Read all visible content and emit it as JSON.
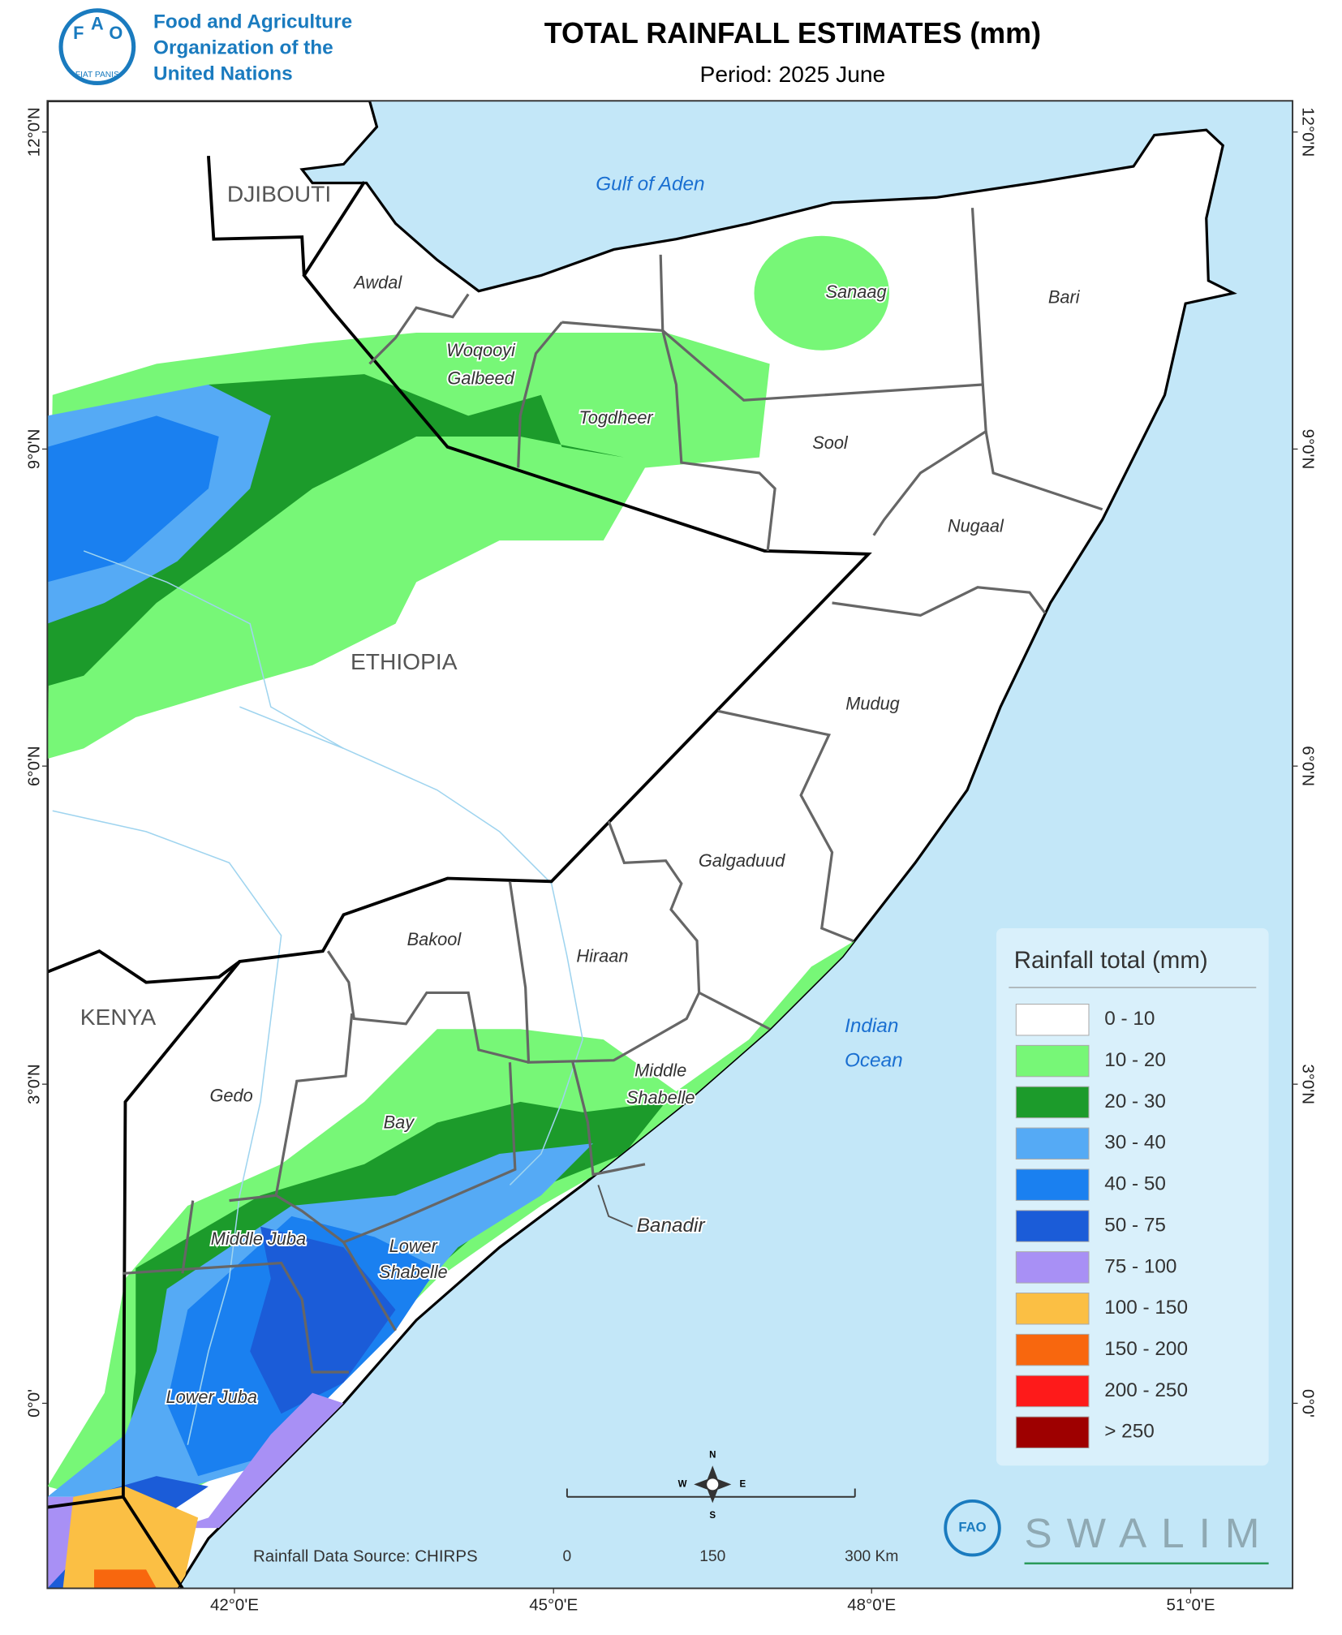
{
  "header": {
    "logo_letters": [
      "F",
      "A",
      "O"
    ],
    "logo_motto": "FIAT PANIS",
    "logo_text": "FAO",
    "org_name": [
      "Food and Agriculture",
      "Organization of the",
      "United Nations"
    ],
    "title": "TOTAL RAINFALL ESTIMATES (mm)",
    "period": "Period: 2025 June"
  },
  "map": {
    "countries": [
      "DJIBOUTI",
      "ETHIOPIA",
      "KENYA"
    ],
    "seas": [
      [
        "Gulf of Aden"
      ],
      [
        "Indian",
        "Ocean"
      ]
    ],
    "regions": [
      [
        "Awdal"
      ],
      [
        "Woqooyi",
        "Galbeed"
      ],
      [
        "Togdheer"
      ],
      [
        "Sanaag"
      ],
      [
        "Bari"
      ],
      [
        "Sool"
      ],
      [
        "Nugaal"
      ],
      [
        "Mudug"
      ],
      [
        "Galgaduud"
      ],
      [
        "Hiraan"
      ],
      [
        "Bakool"
      ],
      [
        "Gedo"
      ],
      [
        "Bay"
      ],
      [
        "Middle",
        "Shabelle"
      ],
      [
        "Banadir"
      ],
      [
        "Middle Juba"
      ],
      [
        "Lower",
        "Shabelle"
      ],
      [
        "Lower Juba"
      ]
    ],
    "latitude_labels": [
      "12°0'N",
      "9°0'N",
      "6°0'N",
      "3°0'N",
      "0°0'"
    ],
    "longitude_labels": [
      "42°0'E",
      "45°0'E",
      "48°0'E",
      "51°0'E"
    ]
  },
  "legend": {
    "title": "Rainfall total (mm)",
    "classes": [
      {
        "label": "0 - 10",
        "color": "#ffffff"
      },
      {
        "label": "10 - 20",
        "color": "#77f777"
      },
      {
        "label": "20 - 30",
        "color": "#1c9b2b"
      },
      {
        "label": "30 - 40",
        "color": "#55aaf5"
      },
      {
        "label": "40 - 50",
        "color": "#1a80f0"
      },
      {
        "label": "50 - 75",
        "color": "#1b5cd8"
      },
      {
        "label": "75 - 100",
        "color": "#a890f5"
      },
      {
        "label": "100 - 150",
        "color": "#fbbf44"
      },
      {
        "label": "150 - 200",
        "color": "#f8670e"
      },
      {
        "label": "200 - 250",
        "color": "#fe1a1a"
      },
      {
        "label": "> 250",
        "color": "#9e0000"
      }
    ]
  },
  "scale_bar": {
    "labels": [
      "0",
      "150",
      "300 Km"
    ]
  },
  "compass": [
    "N",
    "E",
    "S",
    "W"
  ],
  "source": "Rainfall Data Source: CHIRPS",
  "footer_logo": "SWALIM"
}
